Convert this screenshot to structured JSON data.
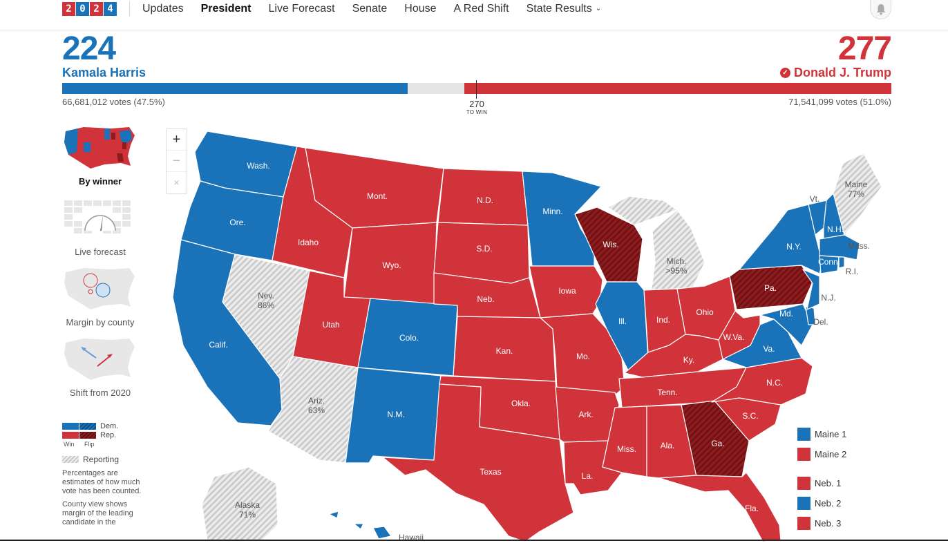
{
  "logo": [
    "2",
    "0",
    "2",
    "4"
  ],
  "nav": [
    {
      "label": "Updates"
    },
    {
      "label": "President"
    },
    {
      "label": "Live Forecast"
    },
    {
      "label": "Senate"
    },
    {
      "label": "House"
    },
    {
      "label": "A Red Shift"
    },
    {
      "label": "State Results"
    }
  ],
  "dem": {
    "count": "224",
    "name": "Kamala Harris",
    "votes": "66,681,012 votes (47.5%)"
  },
  "rep": {
    "count": "277",
    "name": "Donald J. Trump",
    "votes": "71,541,099 votes (51.0%)"
  },
  "threshold": {
    "number": "270",
    "label": "TO WIN"
  },
  "bar": {
    "dem_electoral": 224,
    "rep_electoral": 277,
    "total_electoral": 538
  },
  "views": [
    {
      "label": "By winner"
    },
    {
      "label": "Live forecast"
    },
    {
      "label": "Margin by county"
    },
    {
      "label": "Shift from 2020"
    }
  ],
  "legend": {
    "dem": "Dem.",
    "rep": "Rep.",
    "win": "Win",
    "flip": "Flip",
    "reporting": "Reporting",
    "note1": "Percentages are estimates of how much vote has been counted.",
    "note2": "County view shows margin of the leading candidate in the"
  },
  "zoom": {
    "in": "+",
    "out": "−",
    "reset": "×"
  },
  "states": {
    "wa": "Wash.",
    "or": "Ore.",
    "ca": "Calif.",
    "nv": "Nev.",
    "nv_pct": "86%",
    "id": "Idaho",
    "mt": "Mont.",
    "wy": "Wyo.",
    "ut": "Utah",
    "az": "Ariz.",
    "az_pct": "63%",
    "co": "Colo.",
    "nm": "N.M.",
    "nd": "N.D.",
    "sd": "S.D.",
    "ne": "Neb.",
    "ks": "Kan.",
    "ok": "Okla.",
    "tx": "Texas",
    "mn": "Minn.",
    "ia": "Iowa",
    "mo": "Mo.",
    "ar": "Ark.",
    "la": "La.",
    "wi": "Wis.",
    "il": "Ill.",
    "mi": "Mich.",
    "mi_pct": ">95%",
    "in": "Ind.",
    "oh": "Ohio",
    "ky": "Ky.",
    "tn": "Tenn.",
    "ms": "Miss.",
    "al": "Ala.",
    "ga": "Ga.",
    "fl": "Fla.",
    "sc": "S.C.",
    "nc": "N.C.",
    "va": "Va.",
    "wv": "W.Va.",
    "pa": "Pa.",
    "ny": "N.Y.",
    "vt": "Vt.",
    "nh": "N.H.",
    "me": "Maine",
    "me_pct": "77%",
    "ma": "Mass.",
    "ct": "Conn.",
    "ri": "R.I.",
    "nj": "N.J.",
    "md": "Md.",
    "de": "Del.",
    "ak": "Alaska",
    "ak_pct": "71%",
    "hi": "Hawaii"
  },
  "districts": [
    {
      "label": "Maine 1",
      "color": "#1a72b8"
    },
    {
      "label": "Maine 2",
      "color": "#d0343a"
    },
    {
      "label": "Neb. 1",
      "color": "#d0343a"
    },
    {
      "label": "Neb. 2",
      "color": "#1a72b8"
    },
    {
      "label": "Neb. 3",
      "color": "#d0343a"
    }
  ],
  "colors": {
    "dem": "#1a72b8",
    "rep": "#d0343a",
    "rep_flip": "#8f1b1e",
    "reporting": "#dcdcdc"
  }
}
